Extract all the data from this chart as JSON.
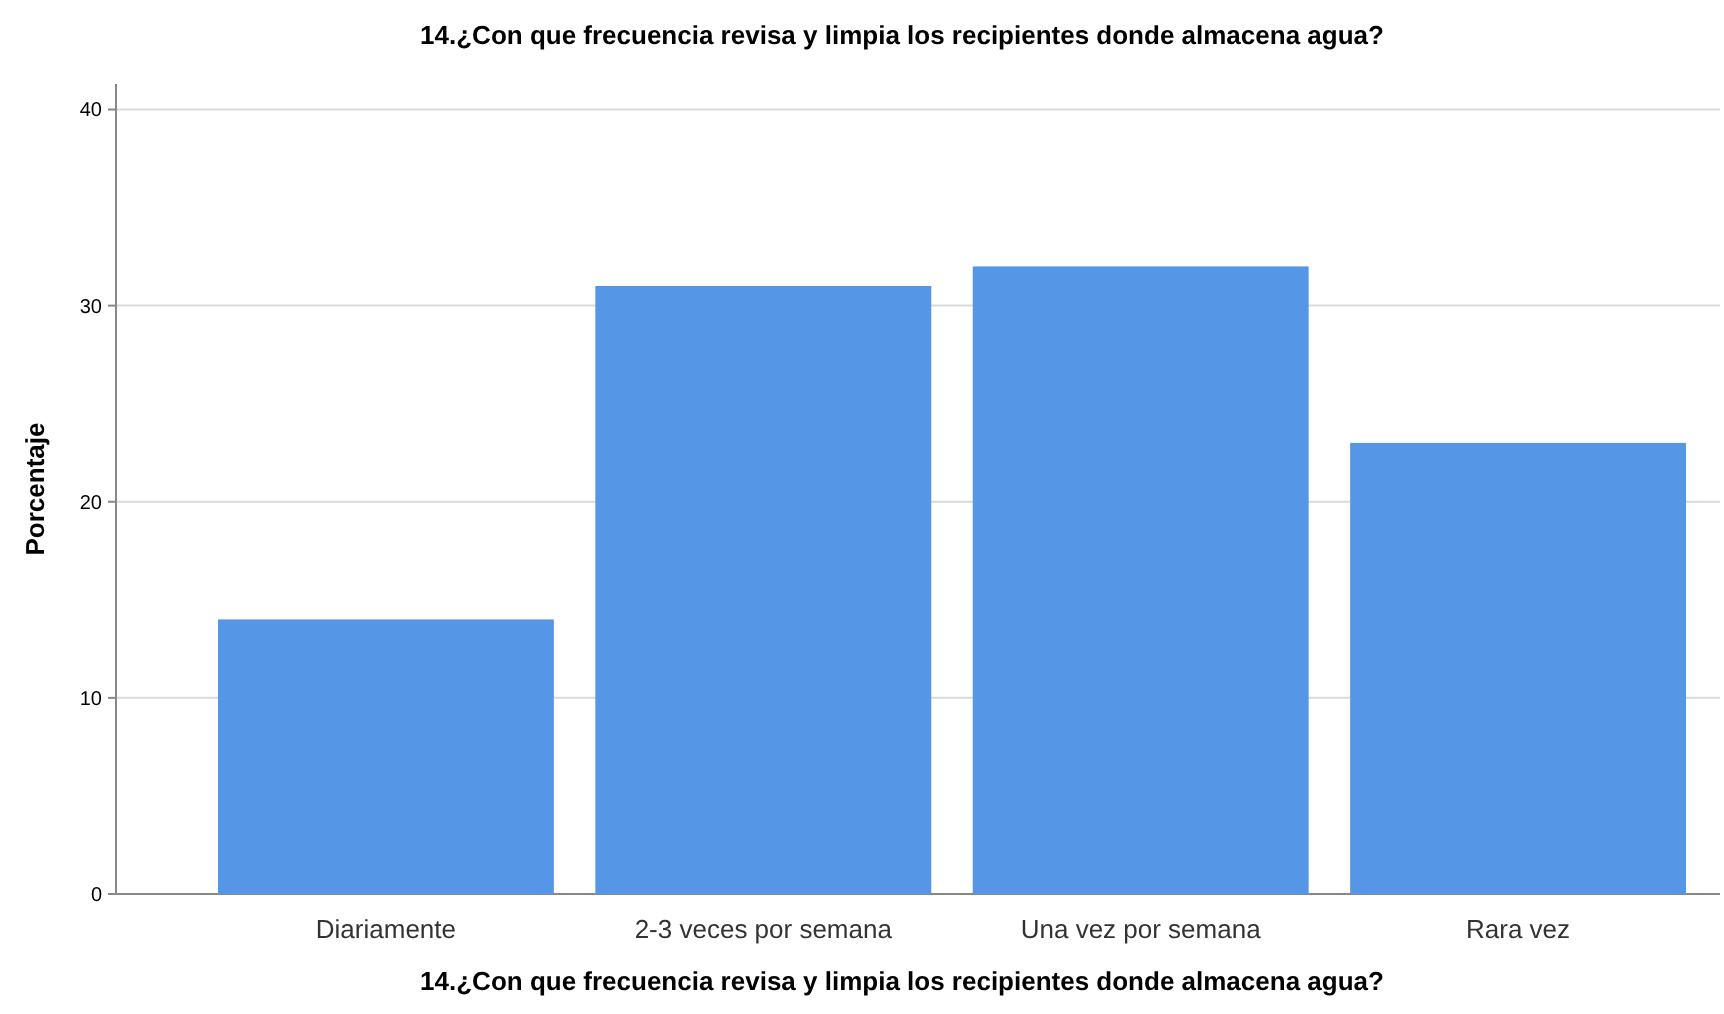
{
  "chart_data": {
    "type": "bar",
    "title": "14.¿Con que frecuencia revisa y limpia los recipientes donde almacena agua?",
    "xlabel": "14.¿Con que frecuencia revisa y limpia los recipientes donde almacena agua?",
    "ylabel": "Porcentaje",
    "categories": [
      "Diariamente",
      "2-3 veces por semana",
      "Una vez por semana",
      "Rara vez"
    ],
    "values": [
      14,
      31,
      32,
      23
    ],
    "color": "#5596e6",
    "ylim": [
      0,
      41.3
    ],
    "yticks": [
      0,
      10,
      20,
      30,
      40
    ],
    "grid": "y"
  }
}
